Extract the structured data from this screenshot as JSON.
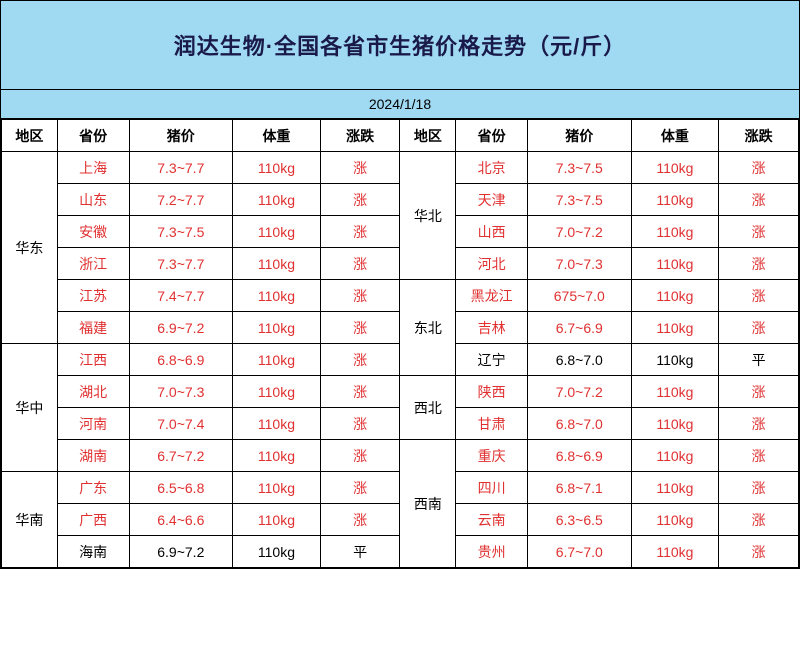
{
  "title": "润达生物·全国各省市生猪价格走势（元/斤）",
  "date": "2024/1/18",
  "headers": {
    "region": "地区",
    "province": "省份",
    "price": "猪价",
    "weight": "体重",
    "trend": "涨跌"
  },
  "colors": {
    "header_bg": "#a0daf2",
    "title_text": "#1a1a4a",
    "up_color": "#e03030",
    "flat_color": "#000000",
    "border": "#000000",
    "cell_bg": "#ffffff"
  },
  "left_regions": [
    {
      "name": "华东",
      "rows": [
        {
          "province": "上海",
          "price": "7.3~7.7",
          "weight": "110kg",
          "trend": "涨",
          "cls": "red"
        },
        {
          "province": "山东",
          "price": "7.2~7.7",
          "weight": "110kg",
          "trend": "涨",
          "cls": "red"
        },
        {
          "province": "安徽",
          "price": "7.3~7.5",
          "weight": "110kg",
          "trend": "涨",
          "cls": "red"
        },
        {
          "province": "浙江",
          "price": "7.3~7.7",
          "weight": "110kg",
          "trend": "涨",
          "cls": "red"
        },
        {
          "province": "江苏",
          "price": "7.4~7.7",
          "weight": "110kg",
          "trend": "涨",
          "cls": "red"
        },
        {
          "province": "福建",
          "price": "6.9~7.2",
          "weight": "110kg",
          "trend": "涨",
          "cls": "red"
        }
      ]
    },
    {
      "name": "华中",
      "rows": [
        {
          "province": "江西",
          "price": "6.8~6.9",
          "weight": "110kg",
          "trend": "涨",
          "cls": "red"
        },
        {
          "province": "湖北",
          "price": "7.0~7.3",
          "weight": "110kg",
          "trend": "涨",
          "cls": "red"
        },
        {
          "province": "河南",
          "price": "7.0~7.4",
          "weight": "110kg",
          "trend": "涨",
          "cls": "red"
        },
        {
          "province": "湖南",
          "price": "6.7~7.2",
          "weight": "110kg",
          "trend": "涨",
          "cls": "red"
        }
      ]
    },
    {
      "name": "华南",
      "rows": [
        {
          "province": "广东",
          "price": "6.5~6.8",
          "weight": "110kg",
          "trend": "涨",
          "cls": "red"
        },
        {
          "province": "广西",
          "price": "6.4~6.6",
          "weight": "110kg",
          "trend": "涨",
          "cls": "red"
        },
        {
          "province": "海南",
          "price": "6.9~7.2",
          "weight": "110kg",
          "trend": "平",
          "cls": "blk"
        }
      ]
    }
  ],
  "right_regions": [
    {
      "name": "华北",
      "rows": [
        {
          "province": "北京",
          "price": "7.3~7.5",
          "weight": "110kg",
          "trend": "涨",
          "cls": "red"
        },
        {
          "province": "天津",
          "price": "7.3~7.5",
          "weight": "110kg",
          "trend": "涨",
          "cls": "red"
        },
        {
          "province": "山西",
          "price": "7.0~7.2",
          "weight": "110kg",
          "trend": "涨",
          "cls": "red"
        },
        {
          "province": "河北",
          "price": "7.0~7.3",
          "weight": "110kg",
          "trend": "涨",
          "cls": "red"
        }
      ]
    },
    {
      "name": "东北",
      "rows": [
        {
          "province": "黑龙江",
          "price": "675~7.0",
          "weight": "110kg",
          "trend": "涨",
          "cls": "red"
        },
        {
          "province": "吉林",
          "price": "6.7~6.9",
          "weight": "110kg",
          "trend": "涨",
          "cls": "red"
        },
        {
          "province": "辽宁",
          "price": "6.8~7.0",
          "weight": "110kg",
          "trend": "平",
          "cls": "blk"
        }
      ]
    },
    {
      "name": "西北",
      "rows": [
        {
          "province": "陕西",
          "price": "7.0~7.2",
          "weight": "110kg",
          "trend": "涨",
          "cls": "red"
        },
        {
          "province": "甘肃",
          "price": "6.8~7.0",
          "weight": "110kg",
          "trend": "涨",
          "cls": "red"
        }
      ]
    },
    {
      "name": "西南",
      "rows": [
        {
          "province": "重庆",
          "price": "6.8~6.9",
          "weight": "110kg",
          "trend": "涨",
          "cls": "red"
        },
        {
          "province": "四川",
          "price": "6.8~7.1",
          "weight": "110kg",
          "trend": "涨",
          "cls": "red"
        },
        {
          "province": "云南",
          "price": "6.3~6.5",
          "weight": "110kg",
          "trend": "涨",
          "cls": "red"
        },
        {
          "province": "贵州",
          "price": "6.7~7.0",
          "weight": "110kg",
          "trend": "涨",
          "cls": "red"
        }
      ]
    }
  ]
}
